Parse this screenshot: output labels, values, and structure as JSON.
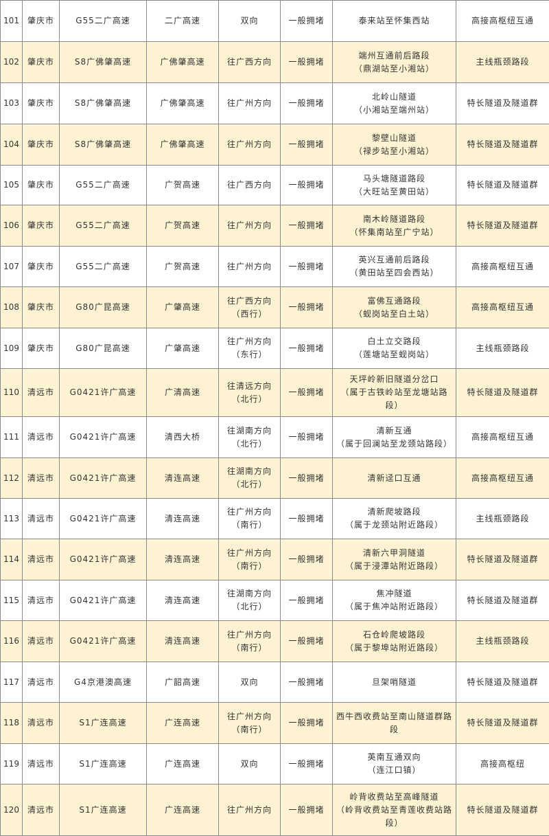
{
  "colors": {
    "row_alt": "#fdf2d2",
    "row": "#ffffff",
    "border": "#8a8a8a"
  },
  "rows": [
    {
      "no": "101",
      "city": "肇庆市",
      "road": "G55二广高速",
      "section": "二广高速",
      "direction": "双向",
      "level": "一般拥堵",
      "location": "泰来站至怀集西站",
      "type": "高接高枢纽互通"
    },
    {
      "no": "102",
      "city": "肇庆市",
      "road": "S8广佛肇高速",
      "section": "广佛肇高速",
      "direction": "往广西方向",
      "level": "一般拥堵",
      "location": "端州互通前后路段\n（鼎湖站至小湘站）",
      "type": "主线瓶颈路段"
    },
    {
      "no": "103",
      "city": "肇庆市",
      "road": "S8广佛肇高速",
      "section": "广佛肇高速",
      "direction": "往广州方向",
      "level": "一般拥堵",
      "location": "北岭山隧道\n（小湘站至端州站）",
      "type": "特长隧道及隧道群"
    },
    {
      "no": "104",
      "city": "肇庆市",
      "road": "S8广佛肇高速",
      "section": "广佛肇高速",
      "direction": "往广州方向",
      "level": "一般拥堵",
      "location": "黎壁山隧道\n（禄步站至小湘站）",
      "type": "特长隧道及隧道群"
    },
    {
      "no": "105",
      "city": "肇庆市",
      "road": "G55二广高速",
      "section": "广贺高速",
      "direction": "往广西方向",
      "level": "一般拥堵",
      "location": "马头塘隧道路段\n（大旺站至黄田站）",
      "type": "特长隧道及隧道群"
    },
    {
      "no": "106",
      "city": "肇庆市",
      "road": "G55二广高速",
      "section": "广贺高速",
      "direction": "往广州方向",
      "level": "一般拥堵",
      "location": "南木岭隧道路段\n（怀集南站至广宁站）",
      "type": "特长隧道及隧道群"
    },
    {
      "no": "107",
      "city": "肇庆市",
      "road": "G55二广高速",
      "section": "广贺高速",
      "direction": "往广州方向",
      "level": "一般拥堵",
      "location": "英兴互通前后路段\n（黄田站至四会西站）",
      "type": "高接高枢纽互通"
    },
    {
      "no": "108",
      "city": "肇庆市",
      "road": "G80广昆高速",
      "section": "广肇高速",
      "direction": "往广西方向\n（西行）",
      "level": "一般拥堵",
      "location": "富佛互通路段\n（蚬岗站至白土站）",
      "type": "高接高枢纽互通"
    },
    {
      "no": "109",
      "city": "肇庆市",
      "road": "G80广昆高速",
      "section": "广肇高速",
      "direction": "往广州方向\n（东行）",
      "level": "一般拥堵",
      "location": "白土立交路段\n（莲塘站至蚬岗站）",
      "type": "主线瓶颈路段"
    },
    {
      "no": "110",
      "city": "清远市",
      "road": "G0421许广高速",
      "section": "广清高速",
      "direction": "往清远方向\n（北行）",
      "level": "一般拥堵",
      "location": "天坪岭新旧隧道分岔口\n（属于古铁岭站至龙塘站路段）",
      "type": "特长隧道及隧道群"
    },
    {
      "no": "111",
      "city": "清远市",
      "road": "G0421许广高速",
      "section": "清西大桥",
      "direction": "往湖南方向\n（北行）",
      "level": "一般拥堵",
      "location": "清新互通\n（属于回澜站至龙颈站路段）",
      "type": "高接高枢纽互通"
    },
    {
      "no": "112",
      "city": "清远市",
      "road": "G0421许广高速",
      "section": "清连高速",
      "direction": "往湖南方向\n（北行）",
      "level": "一般拥堵",
      "location": "清新迳口互通",
      "type": "高接高枢纽互通"
    },
    {
      "no": "113",
      "city": "清远市",
      "road": "G0421许广高速",
      "section": "清连高速",
      "direction": "往广州方向\n（南行）",
      "level": "一般拥堵",
      "location": "清新爬坡路段\n（属于龙颈站附近路段）",
      "type": "主线瓶颈路段"
    },
    {
      "no": "114",
      "city": "清远市",
      "road": "G0421许广高速",
      "section": "清连高速",
      "direction": "往广州方向\n（南行）",
      "level": "一般拥堵",
      "location": "清新六甲洞隧道\n（属于浸潭站附近路段）",
      "type": "特长隧道及隧道群"
    },
    {
      "no": "115",
      "city": "清远市",
      "road": "G0421许广高速",
      "section": "清连高速",
      "direction": "往湖南方向\n（北行）",
      "level": "一般拥堵",
      "location": "焦冲隧道\n（属于焦冲站附近路段）",
      "type": "特长隧道及隧道群"
    },
    {
      "no": "116",
      "city": "清远市",
      "road": "G0421许广高速",
      "section": "清连高速",
      "direction": "往广州方向\n（南行）",
      "level": "一般拥堵",
      "location": "石仓岭爬坡路段\n（属于黎埠站附近路段）",
      "type": "主线瓶颈路段"
    },
    {
      "no": "117",
      "city": "清远市",
      "road": "G4京港澳高速",
      "section": "广韶高速",
      "direction": "双向",
      "level": "一般拥堵",
      "location": "旦架哨隧道",
      "type": "特长隧道及隧道群"
    },
    {
      "no": "118",
      "city": "清远市",
      "road": "S1广连高速",
      "section": "广连高速",
      "direction": "往广州方向\n（南行）",
      "level": "一般拥堵",
      "location": "西牛西收费站至南山隧道群路段",
      "type": "特长隧道及隧道群"
    },
    {
      "no": "119",
      "city": "清远市",
      "road": "S1广连高速",
      "section": "广连高速",
      "direction": "双向",
      "level": "一般拥堵",
      "location": "英南互通双向\n（连江口镇）",
      "type": "高接高枢纽"
    },
    {
      "no": "120",
      "city": "清远市",
      "road": "S1广连高速",
      "section": "广连高速",
      "direction": "往广州方向",
      "level": "一般拥堵",
      "location": "岭背收费站至高峰隧道\n（岭背收费站至青莲收费站路段）",
      "type": "特长隧道及隧道群"
    }
  ]
}
